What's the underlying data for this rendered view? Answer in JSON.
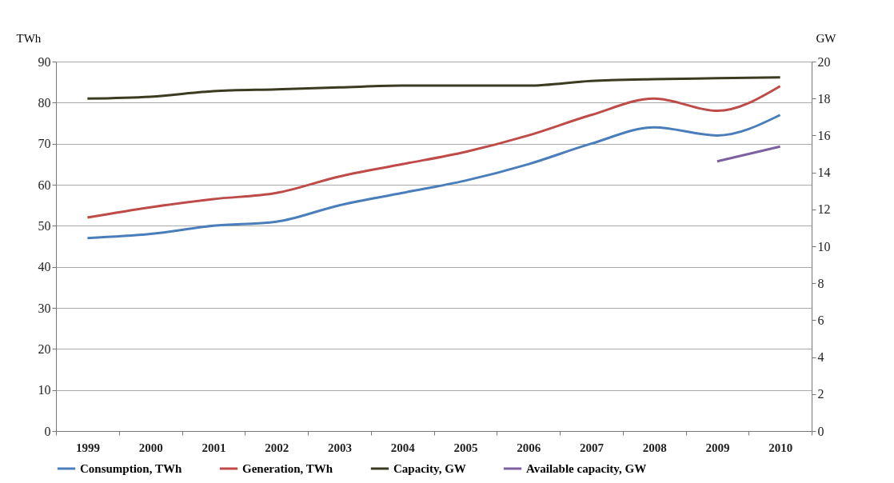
{
  "chart_data": {
    "type": "line",
    "ylabel": "TWh",
    "y2label": "GW",
    "categories": [
      "1999",
      "2000",
      "2001",
      "2002",
      "2003",
      "2004",
      "2005",
      "2006",
      "2007",
      "2008",
      "2009",
      "2010"
    ],
    "series": [
      {
        "name": "Consumption, TWh",
        "color": "#4a7ebb",
        "values": [
          47,
          48,
          50,
          51,
          55,
          58,
          61,
          65,
          70,
          74,
          72,
          77
        ]
      },
      {
        "name": "Generation, TWh",
        "color": "#be4b48",
        "values": [
          52,
          54.5,
          56.5,
          58,
          62,
          65,
          68,
          72,
          77,
          81,
          78,
          84
        ]
      },
      {
        "name": "Capacity, GW",
        "color": "#3b3b22",
        "axis": "y2",
        "values": [
          18.0,
          18.1,
          18.4,
          18.5,
          18.6,
          18.7,
          18.7,
          18.7,
          18.95,
          19.05,
          19.1,
          19.15
        ]
      },
      {
        "name": "Available capacity, GW",
        "color": "#7d60a0",
        "axis": "y2",
        "values": [
          null,
          null,
          null,
          null,
          null,
          null,
          null,
          null,
          null,
          null,
          14.6,
          15.4
        ]
      }
    ],
    "ylim": [
      0,
      90
    ],
    "yticks": [
      0,
      10,
      20,
      30,
      40,
      50,
      60,
      70,
      80,
      90
    ],
    "y2lim": [
      0,
      20
    ],
    "y2ticks": [
      0,
      2,
      4,
      6,
      8,
      10,
      12,
      14,
      16,
      18,
      20
    ],
    "grid": "y",
    "legend": "bottom",
    "marker": "none",
    "line_style": "solid"
  }
}
